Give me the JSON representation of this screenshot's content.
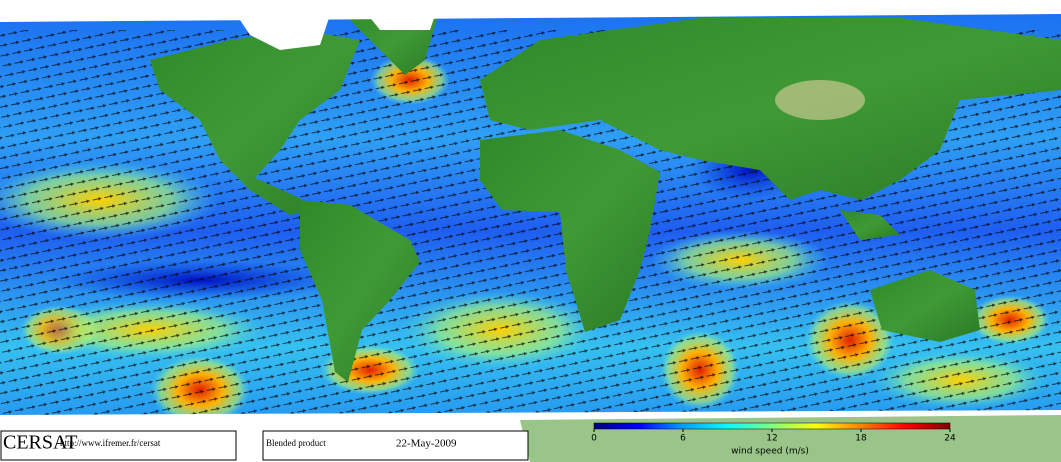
{
  "footer": {
    "logo": "CERSAT",
    "url": "http://www.ifremer.fr/cersat",
    "product": "Blended product",
    "date": "22-May-2009"
  },
  "colorbar": {
    "label": "wind speed (m/s)",
    "range": [
      0,
      24
    ],
    "ticks": [
      0,
      6,
      12,
      18,
      24
    ],
    "colors": [
      "#000080",
      "#0000ff",
      "#00a0ff",
      "#00ffff",
      "#80ff80",
      "#ffff00",
      "#ff8000",
      "#ff0000",
      "#800000"
    ]
  }
}
